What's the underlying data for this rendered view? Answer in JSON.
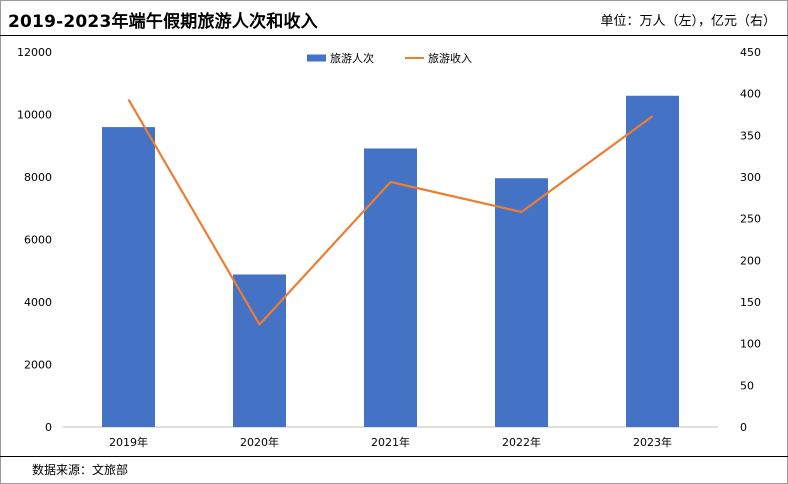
{
  "header": {
    "title": "2019-2023年端午假期旅游人次和收入",
    "unit": "单位：万人（左），亿元（右）"
  },
  "footer": {
    "source": "数据来源：文旅部"
  },
  "chart_data": {
    "type": "bar",
    "title": "2019-2023年端午假期旅游人次和收入",
    "categories": [
      "2019年",
      "2020年",
      "2021年",
      "2022年",
      "2023年"
    ],
    "series": [
      {
        "name": "旅游人次",
        "type": "bar",
        "axis": "left",
        "color": "#4472C4",
        "values": [
          9597,
          4881,
          8913,
          7961,
          10600
        ]
      },
      {
        "name": "旅游收入",
        "type": "line",
        "axis": "right",
        "color": "#ED7D31",
        "values": [
          393,
          123,
          294,
          258,
          373
        ]
      }
    ],
    "y_left": {
      "min": 0,
      "max": 12000,
      "step": 2000,
      "ticks": [
        "0",
        "2000",
        "4000",
        "6000",
        "8000",
        "10000",
        "12000"
      ]
    },
    "y_right": {
      "min": 0,
      "max": 450,
      "step": 50,
      "ticks": [
        "0",
        "50",
        "100",
        "150",
        "200",
        "250",
        "300",
        "350",
        "400",
        "450"
      ]
    },
    "grid": false,
    "legend": "top-center"
  }
}
